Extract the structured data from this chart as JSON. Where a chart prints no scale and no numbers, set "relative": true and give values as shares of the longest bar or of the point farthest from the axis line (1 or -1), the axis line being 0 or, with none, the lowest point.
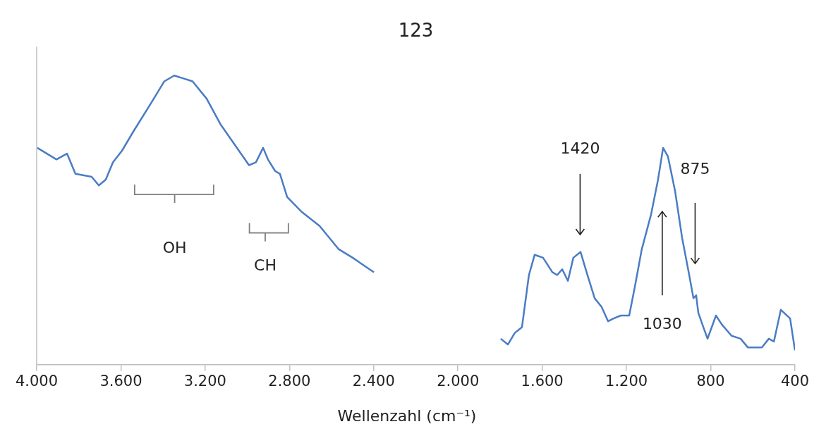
{
  "chart_data": {
    "type": "line",
    "title": "123",
    "xlabel": "Wellenzahl (cm⁻¹)",
    "relative": true,
    "xlim": [
      4000,
      400
    ],
    "xticks": [
      {
        "value": 4000,
        "label": "4.000"
      },
      {
        "value": 3600,
        "label": "3.600"
      },
      {
        "value": 3200,
        "label": "3.200"
      },
      {
        "value": 2800,
        "label": "2.800"
      },
      {
        "value": 2400,
        "label": "2.400"
      },
      {
        "value": 2000,
        "label": "2.000"
      },
      {
        "value": 1600,
        "label": "1.600"
      },
      {
        "value": 1200,
        "label": "1.200"
      },
      {
        "value": 800,
        "label": "800"
      },
      {
        "value": 400,
        "label": "400"
      }
    ],
    "series": [
      {
        "color": "#4a7cc4",
        "x": [
          3997,
          3906,
          3856,
          3816,
          3739,
          3705,
          3672,
          3638,
          3595,
          3538,
          3461,
          3394,
          3347,
          3303,
          3260,
          3193,
          3126,
          3059,
          2992,
          2959,
          2925,
          2902,
          2868,
          2845,
          2811,
          2744,
          2657,
          2567,
          2500,
          2399,
          2100,
          1797,
          1763,
          1730,
          1696,
          1663,
          1636,
          1596,
          1552,
          1529,
          1505,
          1478,
          1452,
          1418,
          1385,
          1351,
          1318,
          1287,
          1261,
          1227,
          1187,
          1160,
          1127,
          1083,
          1050,
          1026,
          1003,
          969,
          936,
          902,
          882,
          869,
          859,
          835,
          815,
          775,
          748,
          701,
          658,
          624,
          557,
          524,
          500,
          467,
          423,
          400
        ],
        "values": [
          0.75,
          0.71,
          0.73,
          0.66,
          0.65,
          0.62,
          0.64,
          0.7,
          0.74,
          0.81,
          0.9,
          0.98,
          1.0,
          0.99,
          0.98,
          0.92,
          0.83,
          0.76,
          0.69,
          0.7,
          0.75,
          0.71,
          0.67,
          0.66,
          0.58,
          0.53,
          0.48,
          0.4,
          0.37,
          0.32,
          null,
          0.09,
          0.07,
          0.11,
          0.13,
          0.31,
          0.38,
          0.37,
          0.32,
          0.31,
          0.33,
          0.29,
          0.37,
          0.39,
          0.31,
          0.23,
          0.2,
          0.15,
          0.16,
          0.17,
          0.17,
          0.27,
          0.4,
          0.52,
          0.64,
          0.75,
          0.72,
          0.6,
          0.44,
          0.31,
          0.23,
          0.24,
          0.18,
          0.13,
          0.09,
          0.17,
          0.14,
          0.1,
          0.09,
          0.06,
          0.06,
          0.09,
          0.08,
          0.19,
          0.16,
          0.05
        ]
      }
    ],
    "annotations": [
      "OH",
      "CH",
      "1420",
      "1030",
      "875"
    ]
  }
}
